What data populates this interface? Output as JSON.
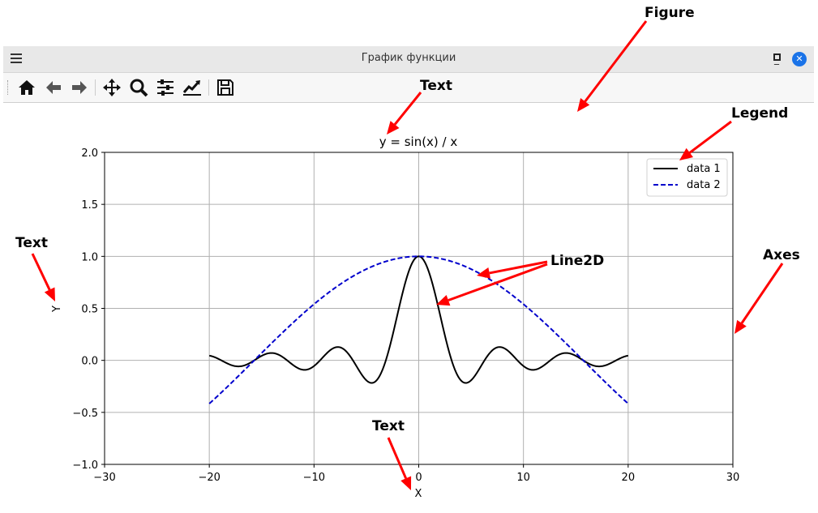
{
  "window": {
    "title": "График функции",
    "minimize_glyph": "_",
    "maximize_glyph": "□",
    "close_glyph": "✕"
  },
  "toolbar": {
    "items": [
      "home-icon",
      "back-icon",
      "forward-icon",
      "pan-icon",
      "zoom-icon",
      "configure-subplots-icon",
      "edit-axis-icon",
      "save-icon"
    ]
  },
  "annotations": {
    "figure": "Figure",
    "text_title": "Text",
    "legend": "Legend",
    "text_ylabel": "Text",
    "line2d": "Line2D",
    "axes": "Axes",
    "text_xlabel": "Text",
    "arrow_color": "#ff0000"
  },
  "chart_data": {
    "type": "line",
    "title": "y = sin(x) / x",
    "xlabel": "X",
    "ylabel": "Y",
    "xlim": [
      -30,
      30
    ],
    "ylim": [
      -1.0,
      2.0
    ],
    "xticks": [
      "−30",
      "−20",
      "−10",
      "0",
      "10",
      "20",
      "30"
    ],
    "yticks": [
      "−1.0",
      "−0.5",
      "0.0",
      "0.5",
      "1.0",
      "1.5",
      "2.0"
    ],
    "grid": true,
    "legend_position": "top-right",
    "series": [
      {
        "name": "data 1",
        "function": "sin(x)/x",
        "x_range": [
          -20,
          20
        ],
        "color": "#000000",
        "style": "solid"
      },
      {
        "name": "data 2",
        "function": "cos(x/10)",
        "x_range": [
          -20,
          20
        ],
        "color": "#0000cc",
        "style": "dashed"
      }
    ]
  }
}
